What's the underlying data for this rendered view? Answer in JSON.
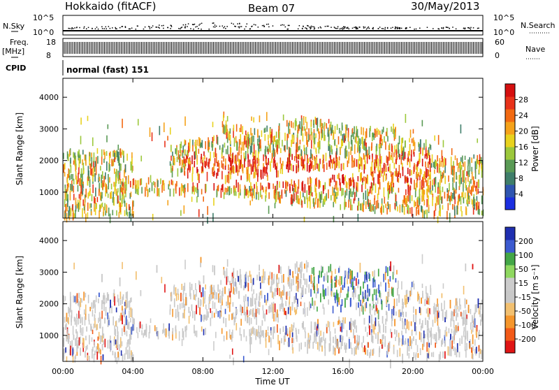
{
  "header": {
    "station": "Hokkaido (fitACF)",
    "beam": "Beam 07",
    "date": "30/May/2013"
  },
  "status_panels": {
    "nsky_label": "N.Sky",
    "nsky_ticks": [
      "10^5",
      "10^0"
    ],
    "nsearch_label": "N.Search",
    "nsearch_ticks": [
      "10^5",
      "10^0"
    ],
    "freq_label": "Freq.",
    "freq_unit": "[MHz]",
    "freq_ticks": [
      "18",
      "8"
    ],
    "nave_label": "Nave",
    "nave_ticks": [
      "60",
      "0"
    ],
    "cpid_label": "CPID",
    "cpid_value": "normal (fast) 151"
  },
  "colors": {
    "power": [
      "#1b2fe0",
      "#2f55b0",
      "#3f7e6a",
      "#5a9a55",
      "#9cc83c",
      "#e8d21e",
      "#f5a21a",
      "#f26a12",
      "#e8321a",
      "#d50f0f"
    ],
    "velocity": [
      "#e01515",
      "#f25a18",
      "#f5962c",
      "#f2c070",
      "#c8c8c8",
      "#cccccc",
      "#8fd860",
      "#43a646",
      "#3c5bd0",
      "#1f2fb0"
    ]
  },
  "chart_data": [
    {
      "type": "heatmap",
      "name": "power",
      "xlabel": "",
      "ylabel": "Slant Range [km]",
      "x_ticks": [
        "00:00",
        "04:00",
        "08:00",
        "12:00",
        "16:00",
        "20:00",
        "00:00"
      ],
      "x_range_hours": [
        0,
        24
      ],
      "y_ticks": [
        1000,
        2000,
        3000,
        4000
      ],
      "y_range_km": [
        180,
        4600
      ],
      "colorbar_label": "Power [dB]",
      "colorbar_ticks": [
        4,
        8,
        12,
        16,
        20,
        24,
        28
      ],
      "colorbar_range": [
        0,
        32
      ]
    },
    {
      "type": "heatmap",
      "name": "velocity",
      "xlabel": "Time UT",
      "ylabel": "Slant Range [km]",
      "x_ticks": [
        "00:00",
        "04:00",
        "08:00",
        "12:00",
        "16:00",
        "20:00",
        "00:00"
      ],
      "x_range_hours": [
        0,
        24
      ],
      "y_ticks": [
        1000,
        2000,
        3000,
        4000
      ],
      "y_range_km": [
        180,
        4600
      ],
      "colorbar_label": "Velocity [m s⁻¹]",
      "colorbar_ticks": [
        200,
        100,
        50,
        15,
        -15,
        -50,
        -100,
        -200
      ]
    }
  ]
}
